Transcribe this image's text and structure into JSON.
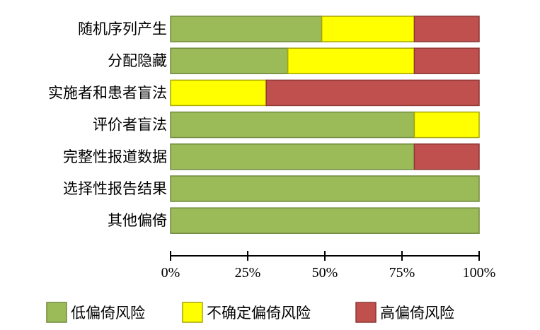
{
  "chart_data": {
    "type": "bar",
    "orientation": "horizontal",
    "stacked": true,
    "categories": [
      "随机序列产生",
      "分配隐藏",
      "实施者和患者盲法",
      "评价者盲法",
      "完整性报道数据",
      "选择性报告结果",
      "其他偏倚"
    ],
    "series": [
      {
        "name": "低偏倚风险",
        "color": "#9BBB59",
        "border": "#71893F",
        "values": [
          49,
          38,
          0,
          79,
          79,
          100,
          100
        ]
      },
      {
        "name": "不确定偏倚风险",
        "color": "#FFFF00",
        "border": "#A6A600",
        "values": [
          30,
          41,
          31,
          21,
          0,
          0,
          0
        ]
      },
      {
        "name": "高偏倚风险",
        "color": "#C0504D",
        "border": "#8C3836",
        "values": [
          21,
          21,
          69,
          0,
          21,
          0,
          0
        ]
      }
    ],
    "xlim": [
      0,
      100
    ],
    "x_ticks": [
      0,
      25,
      50,
      75,
      100
    ],
    "x_tick_labels": [
      "0%",
      "25%",
      "50%",
      "75%",
      "100%"
    ],
    "grid": false,
    "legend_position": "bottom"
  }
}
